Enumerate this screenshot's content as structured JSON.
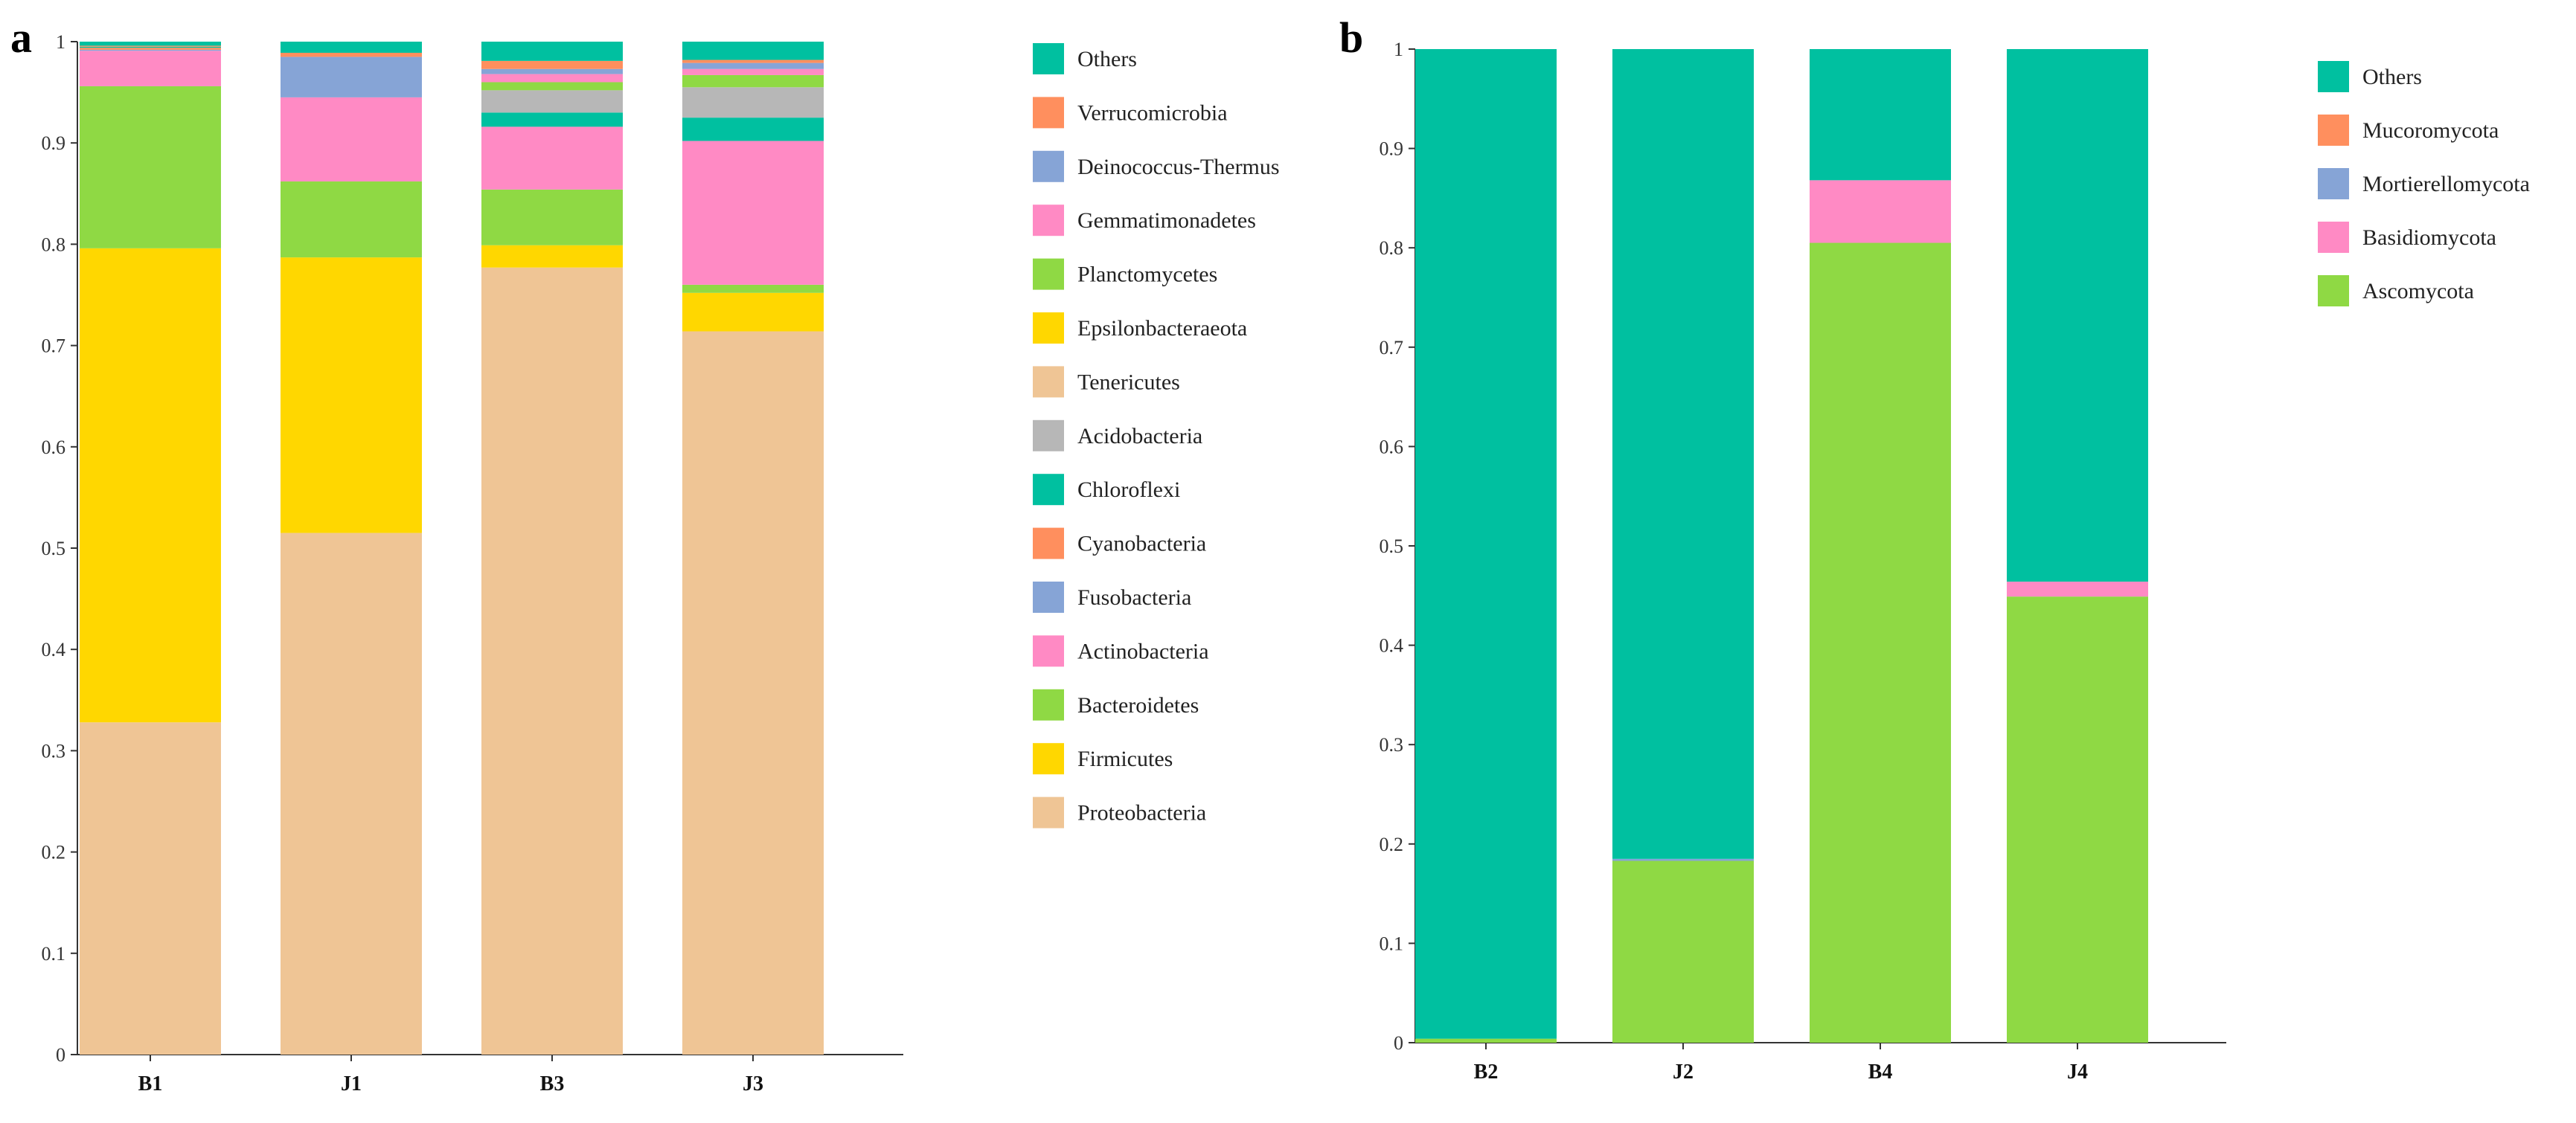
{
  "colors": {
    "Proteobacteria": "#EFC595",
    "Firmicutes": "#FFD700",
    "Bacteroidetes": "#8FD944",
    "Actinobacteria": "#FF8AC4",
    "Fusobacteria": "#86A4D6",
    "Cyanobacteria": "#FF8F5E",
    "Chloroflexi": "#00C0A0",
    "Acidobacteria": "#B7B7B7",
    "Tenericutes": "#EFC595",
    "Epsilonbacteraeota": "#FFD700",
    "Planctomycetes": "#8FD944",
    "Gemmatimonadetes": "#FF8AC4",
    "Deinococcus-Thermus": "#86A4D6",
    "Verrucomicrobia": "#FF8F5E",
    "Others": "#00C0A0",
    "Ascomycota": "#8FD944",
    "Basidiomycota": "#FF8AC4",
    "Mortierellomycota": "#86A4D6",
    "Mucoromycota": "#FF8F5E"
  },
  "chart_data": [
    {
      "type": "bar",
      "stacked": true,
      "panel_label": "a",
      "categories": [
        "B1",
        "J1",
        "B3",
        "J3"
      ],
      "ylim": [
        0,
        1
      ],
      "yticks": [
        "0",
        "0.1",
        "0.2",
        "0.3",
        "0.4",
        "0.5",
        "0.6",
        "0.7",
        "0.8",
        "0.9",
        "1"
      ],
      "legend_position": "right",
      "legend": [
        "Others",
        "Verrucomicrobia",
        "Deinococcus-Thermus",
        "Gemmatimonadetes",
        "Planctomycetes",
        "Epsilonbacteraeota",
        "Tenericutes",
        "Acidobacteria",
        "Chloroflexi",
        "Cyanobacteria",
        "Fusobacteria",
        "Actinobacteria",
        "Bacteroidetes",
        "Firmicutes",
        "Proteobacteria"
      ],
      "series": [
        {
          "name": "Proteobacteria",
          "values": [
            0.328,
            0.515,
            0.777,
            0.714
          ]
        },
        {
          "name": "Firmicutes",
          "values": [
            0.468,
            0.272,
            0.022,
            0.038
          ]
        },
        {
          "name": "Bacteroidetes",
          "values": [
            0.16,
            0.075,
            0.055,
            0.008
          ]
        },
        {
          "name": "Actinobacteria",
          "values": [
            0.035,
            0.083,
            0.062,
            0.142
          ]
        },
        {
          "name": "Fusobacteria",
          "values": [
            0.001,
            0.04,
            0.0,
            0.0
          ]
        },
        {
          "name": "Cyanobacteria",
          "values": [
            0.002,
            0.004,
            0.0,
            0.0
          ]
        },
        {
          "name": "Chloroflexi",
          "values": [
            0.001,
            0.0,
            0.014,
            0.023
          ]
        },
        {
          "name": "Acidobacteria",
          "values": [
            0.0,
            0.0,
            0.022,
            0.03
          ]
        },
        {
          "name": "Tenericutes",
          "values": [
            0.0,
            0.0,
            0.0,
            0.0
          ]
        },
        {
          "name": "Epsilonbacteraeota",
          "values": [
            0.0,
            0.0,
            0.0,
            0.0
          ]
        },
        {
          "name": "Planctomycetes",
          "values": [
            0.0,
            0.0,
            0.008,
            0.012
          ]
        },
        {
          "name": "Gemmatimonadetes",
          "values": [
            0.0,
            0.0,
            0.008,
            0.006
          ]
        },
        {
          "name": "Deinococcus-Thermus",
          "values": [
            0.0,
            0.0,
            0.005,
            0.006
          ]
        },
        {
          "name": "Verrucomicrobia",
          "values": [
            0.001,
            0.0,
            0.008,
            0.003
          ]
        },
        {
          "name": "Others",
          "values": [
            0.004,
            0.011,
            0.019,
            0.018
          ]
        }
      ]
    },
    {
      "type": "bar",
      "stacked": true,
      "panel_label": "b",
      "categories": [
        "B2",
        "J2",
        "B4",
        "J4"
      ],
      "ylim": [
        0,
        1
      ],
      "yticks": [
        "0",
        "0.1",
        "0.2",
        "0.3",
        "0.4",
        "0.5",
        "0.6",
        "0.7",
        "0.8",
        "0.9",
        "1"
      ],
      "legend_position": "right",
      "legend": [
        "Others",
        "Mucoromycota",
        "Mortierellomycota",
        "Basidiomycota",
        "Ascomycota"
      ],
      "series": [
        {
          "name": "Ascomycota",
          "values": [
            0.004,
            0.183,
            0.805,
            0.449
          ]
        },
        {
          "name": "Basidiomycota",
          "values": [
            0.0,
            0.0,
            0.063,
            0.015
          ]
        },
        {
          "name": "Mortierellomycota",
          "values": [
            0.0,
            0.002,
            0.0,
            0.0
          ]
        },
        {
          "name": "Mucoromycota",
          "values": [
            0.0,
            0.0,
            0.0,
            0.0
          ]
        },
        {
          "name": "Others",
          "values": [
            0.996,
            0.815,
            0.132,
            0.536
          ]
        }
      ]
    }
  ]
}
